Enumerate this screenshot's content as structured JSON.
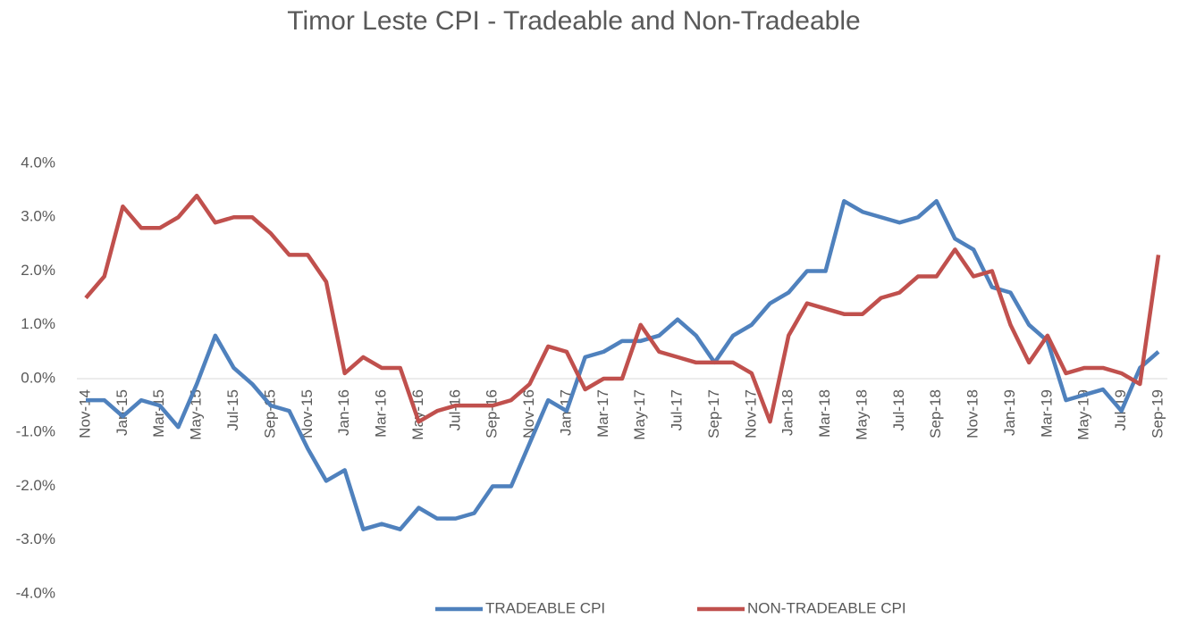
{
  "chart_data": {
    "type": "line",
    "title": "Timor Leste CPI - Tradeable and Non-Tradeable",
    "categories": [
      "Nov-14",
      null,
      "Jan-15",
      null,
      "Mar-15",
      null,
      "May-15",
      null,
      "Jul-15",
      null,
      "Sep-15",
      null,
      "Nov-15",
      null,
      "Jan-16",
      null,
      "Mar-16",
      null,
      "May-16",
      null,
      "Jul-16",
      null,
      "Sep-16",
      null,
      "Nov-16",
      null,
      "Jan-17",
      null,
      "Mar-17",
      null,
      "May-17",
      null,
      "Jul-17",
      null,
      "Sep-17",
      null,
      "Nov-17",
      null,
      "Jan-18",
      null,
      "Mar-18",
      null,
      "May-18",
      null,
      "Jul-18",
      null,
      "Sep-18",
      null,
      "Nov-18",
      null,
      "Jan-19",
      null,
      "Mar-19",
      null,
      "May-19",
      null,
      "Jul-19",
      null,
      "Sep-19"
    ],
    "series": [
      {
        "name": "TRADEABLE CPI",
        "color": "#4f81bd",
        "values": [
          -0.4,
          -0.4,
          -0.7,
          -0.4,
          -0.5,
          -0.9,
          -0.1,
          0.8,
          0.2,
          -0.1,
          -0.5,
          -0.6,
          -1.3,
          -1.9,
          -1.7,
          -2.8,
          -2.7,
          -2.8,
          -2.4,
          -2.6,
          -2.6,
          -2.5,
          -2.0,
          -2.0,
          -1.2,
          -0.4,
          -0.6,
          0.4,
          0.5,
          0.7,
          0.7,
          0.8,
          1.1,
          0.8,
          0.3,
          0.8,
          1.0,
          1.4,
          1.6,
          2.0,
          2.0,
          3.3,
          3.1,
          3.0,
          2.9,
          3.0,
          3.3,
          2.6,
          2.4,
          1.7,
          1.6,
          1.0,
          0.7,
          -0.4,
          -0.3,
          -0.2,
          -0.6,
          0.2,
          0.5
        ]
      },
      {
        "name": "NON-TRADEABLE CPI",
        "color": "#c0504d",
        "values": [
          1.5,
          1.9,
          3.2,
          2.8,
          2.8,
          3.0,
          3.4,
          2.9,
          3.0,
          3.0,
          2.7,
          2.3,
          2.3,
          1.8,
          0.1,
          0.4,
          0.2,
          0.2,
          -0.8,
          -0.6,
          -0.5,
          -0.5,
          -0.5,
          -0.4,
          -0.1,
          0.6,
          0.5,
          -0.2,
          0.0,
          0.0,
          1.0,
          0.5,
          0.4,
          0.3,
          0.3,
          0.3,
          0.1,
          -0.8,
          0.8,
          1.4,
          1.3,
          1.2,
          1.2,
          1.5,
          1.6,
          1.9,
          1.9,
          2.4,
          1.9,
          2.0,
          1.0,
          0.3,
          0.8,
          0.1,
          0.2,
          0.2,
          0.1,
          -0.1,
          2.3
        ]
      }
    ],
    "ylim": [
      -4,
      4
    ],
    "yticks": [
      {
        "value": -4,
        "label": "-4.0%"
      },
      {
        "value": -3,
        "label": "-3.0%"
      },
      {
        "value": -2,
        "label": "-2.0%"
      },
      {
        "value": -1,
        "label": "-1.0%"
      },
      {
        "value": 0,
        "label": "0.0%"
      },
      {
        "value": 1,
        "label": "1.0%"
      },
      {
        "value": 2,
        "label": "2.0%"
      },
      {
        "value": 3,
        "label": "3.0%"
      },
      {
        "value": 4,
        "label": "4.0%"
      }
    ],
    "legend": "bottom"
  }
}
